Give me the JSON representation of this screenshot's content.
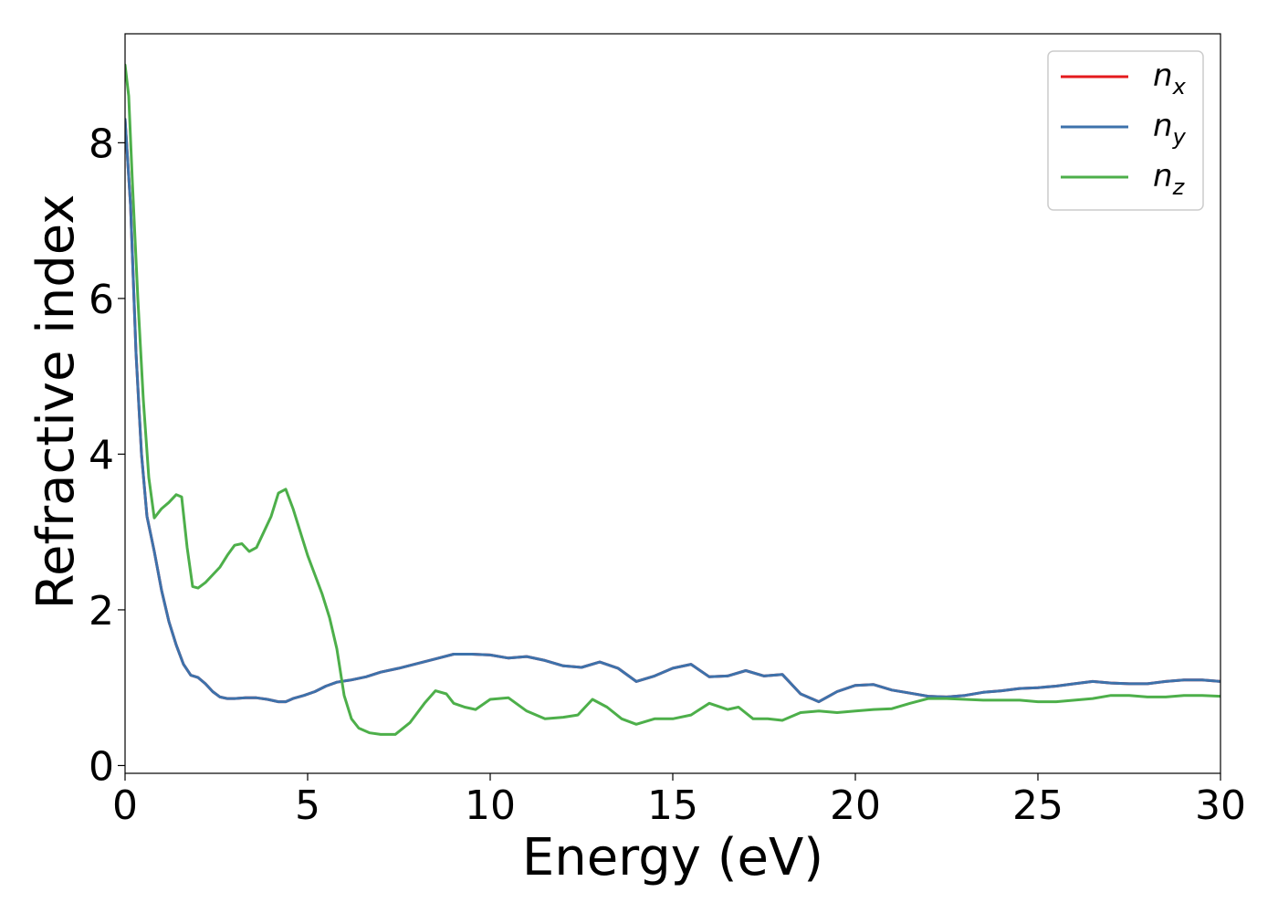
{
  "chart_data": {
    "type": "line",
    "title": "",
    "xlabel": "Energy (eV)",
    "ylabel": "Refractive index",
    "xlim": [
      0,
      30
    ],
    "ylim": [
      -0.1,
      9.4
    ],
    "xticks": [
      0,
      5,
      10,
      15,
      20,
      25,
      30
    ],
    "yticks": [
      0,
      2,
      4,
      6,
      8
    ],
    "grid": false,
    "legend_position": "top-right",
    "series": [
      {
        "name": "n",
        "subscript": "x",
        "color": "#e41a1c",
        "x": [
          0,
          0.15,
          0.3,
          0.45,
          0.6,
          0.8,
          1.0,
          1.2,
          1.4,
          1.6,
          1.8,
          2.0,
          2.2,
          2.4,
          2.6,
          2.8,
          3.0,
          3.3,
          3.6,
          3.9,
          4.2,
          4.4,
          4.6,
          4.9,
          5.2,
          5.5,
          5.8,
          6.2,
          6.6,
          7.0,
          7.5,
          8.0,
          8.5,
          9.0,
          9.5,
          10.0,
          10.5,
          11.0,
          11.5,
          12.0,
          12.5,
          13.0,
          13.5,
          14.0,
          14.5,
          15.0,
          15.5,
          16.0,
          16.5,
          17.0,
          17.5,
          18.0,
          18.5,
          19.0,
          19.5,
          20.0,
          20.5,
          21.0,
          21.5,
          22.0,
          22.5,
          23.0,
          23.5,
          24.0,
          24.5,
          25.0,
          25.5,
          26.0,
          26.5,
          27.0,
          27.5,
          28.0,
          28.5,
          29.0,
          29.5,
          30.0
        ],
        "y": [
          8.3,
          7.2,
          5.3,
          4.0,
          3.2,
          2.75,
          2.25,
          1.85,
          1.55,
          1.3,
          1.16,
          1.13,
          1.05,
          0.95,
          0.88,
          0.86,
          0.86,
          0.87,
          0.87,
          0.85,
          0.82,
          0.82,
          0.86,
          0.9,
          0.95,
          1.02,
          1.07,
          1.1,
          1.14,
          1.2,
          1.25,
          1.31,
          1.37,
          1.43,
          1.43,
          1.42,
          1.38,
          1.4,
          1.35,
          1.28,
          1.26,
          1.33,
          1.25,
          1.08,
          1.15,
          1.25,
          1.3,
          1.14,
          1.15,
          1.22,
          1.15,
          1.17,
          0.92,
          0.82,
          0.95,
          1.03,
          1.04,
          0.97,
          0.93,
          0.89,
          0.88,
          0.9,
          0.94,
          0.96,
          0.99,
          1.0,
          1.02,
          1.05,
          1.08,
          1.06,
          1.05,
          1.05,
          1.08,
          1.1,
          1.1,
          1.08
        ]
      },
      {
        "name": "n",
        "subscript": "y",
        "color": "#3d72ab",
        "x": [
          0,
          0.15,
          0.3,
          0.45,
          0.6,
          0.8,
          1.0,
          1.2,
          1.4,
          1.6,
          1.8,
          2.0,
          2.2,
          2.4,
          2.6,
          2.8,
          3.0,
          3.3,
          3.6,
          3.9,
          4.2,
          4.4,
          4.6,
          4.9,
          5.2,
          5.5,
          5.8,
          6.2,
          6.6,
          7.0,
          7.5,
          8.0,
          8.5,
          9.0,
          9.5,
          10.0,
          10.5,
          11.0,
          11.5,
          12.0,
          12.5,
          13.0,
          13.5,
          14.0,
          14.5,
          15.0,
          15.5,
          16.0,
          16.5,
          17.0,
          17.5,
          18.0,
          18.5,
          19.0,
          19.5,
          20.0,
          20.5,
          21.0,
          21.5,
          22.0,
          22.5,
          23.0,
          23.5,
          24.0,
          24.5,
          25.0,
          25.5,
          26.0,
          26.5,
          27.0,
          27.5,
          28.0,
          28.5,
          29.0,
          29.5,
          30.0
        ],
        "y": [
          8.3,
          7.2,
          5.3,
          4.0,
          3.2,
          2.75,
          2.25,
          1.85,
          1.55,
          1.3,
          1.16,
          1.13,
          1.05,
          0.95,
          0.88,
          0.86,
          0.86,
          0.87,
          0.87,
          0.85,
          0.82,
          0.82,
          0.86,
          0.9,
          0.95,
          1.02,
          1.07,
          1.1,
          1.14,
          1.2,
          1.25,
          1.31,
          1.37,
          1.43,
          1.43,
          1.42,
          1.38,
          1.4,
          1.35,
          1.28,
          1.26,
          1.33,
          1.25,
          1.08,
          1.15,
          1.25,
          1.3,
          1.14,
          1.15,
          1.22,
          1.15,
          1.17,
          0.92,
          0.82,
          0.95,
          1.03,
          1.04,
          0.97,
          0.93,
          0.89,
          0.88,
          0.9,
          0.94,
          0.96,
          0.99,
          1.0,
          1.02,
          1.05,
          1.08,
          1.06,
          1.05,
          1.05,
          1.08,
          1.1,
          1.1,
          1.08
        ]
      },
      {
        "name": "n",
        "subscript": "z",
        "color": "#4daf4a",
        "x": [
          0,
          0.1,
          0.2,
          0.35,
          0.5,
          0.65,
          0.8,
          1.0,
          1.2,
          1.4,
          1.55,
          1.7,
          1.85,
          2.0,
          2.2,
          2.4,
          2.6,
          2.8,
          3.0,
          3.2,
          3.4,
          3.6,
          3.8,
          4.0,
          4.2,
          4.4,
          4.6,
          4.8,
          5.0,
          5.2,
          5.4,
          5.6,
          5.8,
          6.0,
          6.2,
          6.4,
          6.7,
          7.0,
          7.4,
          7.8,
          8.2,
          8.5,
          8.8,
          9.0,
          9.3,
          9.6,
          10.0,
          10.5,
          11.0,
          11.5,
          12.0,
          12.4,
          12.8,
          13.2,
          13.6,
          14.0,
          14.5,
          15.0,
          15.5,
          16.0,
          16.5,
          16.8,
          17.2,
          17.6,
          18.0,
          18.5,
          19.0,
          19.5,
          20.0,
          20.5,
          21.0,
          21.5,
          22.0,
          22.5,
          23.0,
          23.5,
          24.0,
          24.5,
          25.0,
          25.5,
          26.0,
          26.5,
          27.0,
          27.5,
          28.0,
          28.5,
          29.0,
          29.5,
          30.0
        ],
        "y": [
          9.0,
          8.6,
          7.5,
          6.0,
          4.7,
          3.7,
          3.18,
          3.3,
          3.38,
          3.48,
          3.45,
          2.8,
          2.3,
          2.28,
          2.35,
          2.45,
          2.55,
          2.7,
          2.83,
          2.85,
          2.75,
          2.8,
          3.0,
          3.2,
          3.5,
          3.55,
          3.3,
          3.0,
          2.7,
          2.45,
          2.2,
          1.9,
          1.5,
          0.9,
          0.6,
          0.48,
          0.42,
          0.4,
          0.4,
          0.55,
          0.8,
          0.96,
          0.92,
          0.8,
          0.75,
          0.72,
          0.85,
          0.87,
          0.7,
          0.6,
          0.62,
          0.65,
          0.85,
          0.75,
          0.6,
          0.53,
          0.6,
          0.6,
          0.65,
          0.8,
          0.72,
          0.75,
          0.6,
          0.6,
          0.58,
          0.68,
          0.7,
          0.68,
          0.7,
          0.72,
          0.73,
          0.8,
          0.86,
          0.86,
          0.85,
          0.84,
          0.84,
          0.84,
          0.82,
          0.82,
          0.84,
          0.86,
          0.9,
          0.9,
          0.88,
          0.88,
          0.9,
          0.9,
          0.89
        ]
      }
    ]
  }
}
